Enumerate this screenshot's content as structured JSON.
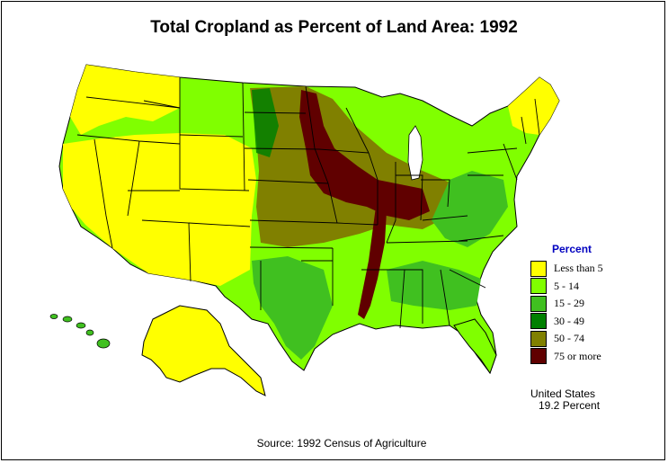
{
  "title": "Total Cropland as Percent of Land Area:  1992",
  "legend": {
    "title": "Percent",
    "items": [
      {
        "label": "Less than 5",
        "color": "#ffff00"
      },
      {
        "label": "5  -  14",
        "color": "#80ff00"
      },
      {
        "label": "15  -  29",
        "color": "#40c020"
      },
      {
        "label": "30  -  49",
        "color": "#008000"
      },
      {
        "label": "50  -  74",
        "color": "#808000"
      },
      {
        "label": "75 or more",
        "color": "#600000"
      }
    ]
  },
  "summary": {
    "line1": "United States",
    "line2": "19.2 Percent"
  },
  "source": "Source:  1992 Census of Agriculture"
}
